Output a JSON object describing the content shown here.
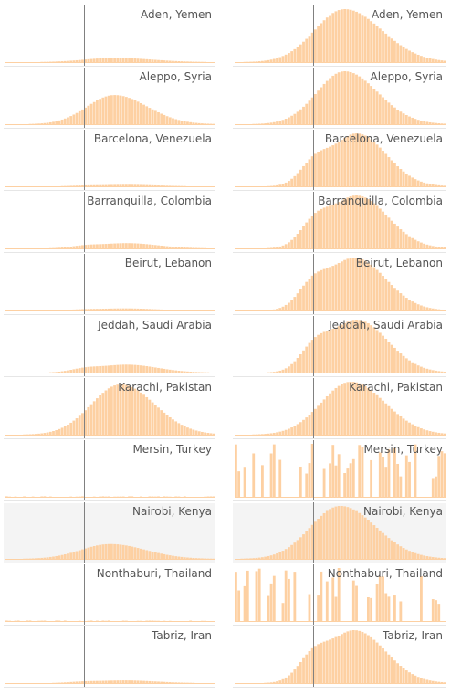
{
  "chart_data": {
    "type": "bar",
    "title": "",
    "xlabel": "",
    "ylabel": "",
    "layout": "small multiples: 11 rows x 2 columns",
    "columns": [
      "left: shared y-scale",
      "right: per-row normalized y-scale"
    ],
    "reference_line": "vertical line near center of each column",
    "highlighted_row": "Nairobi, Kenya",
    "colors": {
      "bar": "#fdd0a2",
      "reference_line": "#808080",
      "label": "#555555",
      "row_separator": "#e6e6e6",
      "highlight_bg": "#f4f4f4"
    },
    "series": [
      {
        "name": "Aden, Yemen",
        "type": "smooth",
        "peak": 0.52,
        "spread": 0.14,
        "skew": 1.25,
        "left_height": 0.08
      },
      {
        "name": "Aleppo, Syria",
        "type": "smooth",
        "peak": 0.52,
        "spread": 0.13,
        "skew": 1.2,
        "left_height": 0.55
      },
      {
        "name": "Barcelona, Venezuela",
        "type": "bimodal",
        "peak": 0.58,
        "spread": 0.11,
        "skew": 1.25,
        "left_height": 0.03
      },
      {
        "name": "Barranquilla, Colombia",
        "type": "bimodal",
        "peak": 0.58,
        "spread": 0.12,
        "skew": 1.2,
        "left_height": 0.1
      },
      {
        "name": "Beirut, Lebanon",
        "type": "bimodal",
        "peak": 0.57,
        "spread": 0.12,
        "skew": 1.2,
        "left_height": 0.04
      },
      {
        "name": "Jeddah, Saudi Arabia",
        "type": "bimodal",
        "peak": 0.58,
        "spread": 0.12,
        "skew": 1.2,
        "left_height": 0.15
      },
      {
        "name": "Karachi, Pakistan",
        "type": "smooth",
        "peak": 0.55,
        "spread": 0.14,
        "skew": 1.15,
        "left_height": 0.95
      },
      {
        "name": "Mersin, Turkey",
        "type": "sparse",
        "peak": 0.5,
        "spread": 0.3,
        "skew": 1.0,
        "left_height": 0.01
      },
      {
        "name": "Nairobi, Kenya",
        "type": "smooth",
        "peak": 0.5,
        "spread": 0.14,
        "skew": 1.2,
        "left_height": 0.28
      },
      {
        "name": "Nonthaburi, Thailand",
        "type": "sparse",
        "peak": 0.45,
        "spread": 0.3,
        "skew": 1.0,
        "left_height": 0.01
      },
      {
        "name": "Tabriz, Iran",
        "type": "bimodal",
        "peak": 0.57,
        "spread": 0.12,
        "skew": 1.2,
        "left_height": 0.05
      }
    ]
  }
}
